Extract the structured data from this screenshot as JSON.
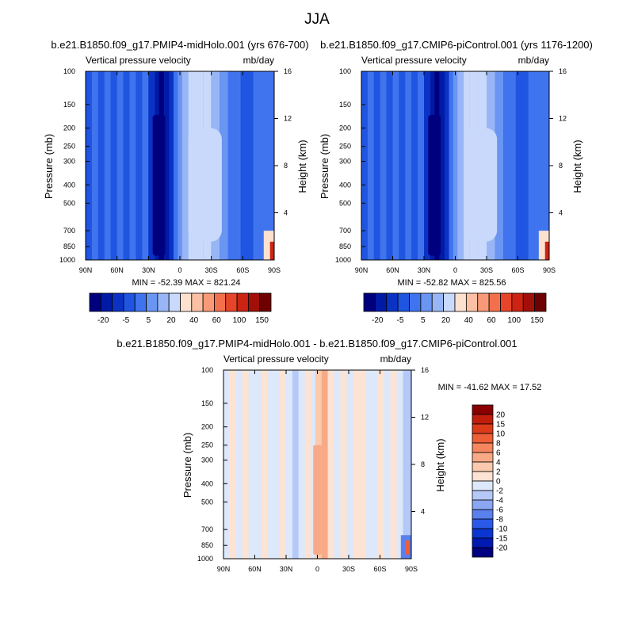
{
  "figure": {
    "title": "JJA"
  },
  "colors": {
    "levels": [
      "#00007f",
      "#001aa6",
      "#0a33c6",
      "#1f55e0",
      "#3f74ee",
      "#6a95f2",
      "#98b6f5",
      "#c9d9fb",
      "#fde1cf",
      "#fbc0a4",
      "#f89a78",
      "#f2704c",
      "#e6452a",
      "#cc2312",
      "#a20e08",
      "#6e0000"
    ],
    "diff_levels": [
      "#000080",
      "#0019b0",
      "#0a35d0",
      "#2a58e8",
      "#5a80ee",
      "#8ba6f3",
      "#b5c9f8",
      "#dde8fb",
      "#fde3d3",
      "#fbc9ae",
      "#f8a986",
      "#f5865e",
      "#ee5e37",
      "#dd3a1a",
      "#c01d0b",
      "#8a0000"
    ]
  },
  "chart_data": [
    {
      "type": "heatmap",
      "title": "b.e21.B1850.f09_g17.PMIP4-midHolo.001 (yrs 676-700)",
      "left_label": "Vertical pressure velocity",
      "right_label": "mb/day",
      "xlabel": "",
      "ylabel": "Pressure (mb)",
      "ylabel_right": "Height (km)",
      "x_ticks": [
        "90N",
        "60N",
        "30N",
        "0",
        "30S",
        "60S",
        "90S"
      ],
      "x_values": [
        90,
        60,
        30,
        0,
        -30,
        -60,
        -90
      ],
      "y_ticks": [
        "100",
        "150",
        "200",
        "250",
        "300",
        "400",
        "500",
        "700",
        "850",
        "1000"
      ],
      "y_values": [
        100,
        150,
        200,
        250,
        300,
        400,
        500,
        700,
        850,
        1000
      ],
      "height_ticks": [
        "16",
        "12",
        "8",
        "4"
      ],
      "height_values": [
        16,
        12,
        8,
        4
      ],
      "stats": "MIN = -52.39  MAX = 821.24",
      "colorbar_labels": [
        "-20",
        "-5",
        "5",
        "20",
        "40",
        "60",
        "100",
        "150"
      ],
      "xlim": [
        90,
        -90
      ],
      "ylim": [
        100,
        1000
      ]
    },
    {
      "type": "heatmap",
      "title": "b.e21.B1850.f09_g17.CMIP6-piControl.001 (yrs 1176-1200)",
      "left_label": "Vertical pressure velocity",
      "right_label": "mb/day",
      "xlabel": "",
      "ylabel": "Pressure (mb)",
      "ylabel_right": "Height (km)",
      "x_ticks": [
        "90N",
        "60N",
        "30N",
        "0",
        "30S",
        "60S",
        "90S"
      ],
      "x_values": [
        90,
        60,
        30,
        0,
        -30,
        -60,
        -90
      ],
      "y_ticks": [
        "100",
        "150",
        "200",
        "250",
        "300",
        "400",
        "500",
        "700",
        "850",
        "1000"
      ],
      "y_values": [
        100,
        150,
        200,
        250,
        300,
        400,
        500,
        700,
        850,
        1000
      ],
      "height_ticks": [
        "16",
        "12",
        "8",
        "4"
      ],
      "height_values": [
        16,
        12,
        8,
        4
      ],
      "stats": "MIN = -52.82  MAX = 825.56",
      "colorbar_labels": [
        "-20",
        "-5",
        "5",
        "20",
        "40",
        "60",
        "100",
        "150"
      ],
      "xlim": [
        90,
        -90
      ],
      "ylim": [
        100,
        1000
      ]
    },
    {
      "type": "heatmap",
      "title": "b.e21.B1850.f09_g17.PMIP4-midHolo.001 - b.e21.B1850.f09_g17.CMIP6-piControl.001",
      "left_label": "Vertical pressure velocity",
      "right_label": "mb/day",
      "xlabel": "",
      "ylabel": "Pressure (mb)",
      "ylabel_right": "Height (km)",
      "x_ticks": [
        "90N",
        "60N",
        "30N",
        "0",
        "30S",
        "60S",
        "90S"
      ],
      "x_values": [
        90,
        60,
        30,
        0,
        -30,
        -60,
        -90
      ],
      "y_ticks": [
        "100",
        "150",
        "200",
        "250",
        "300",
        "400",
        "500",
        "700",
        "850",
        "1000"
      ],
      "y_values": [
        100,
        150,
        200,
        250,
        300,
        400,
        500,
        700,
        850,
        1000
      ],
      "height_ticks": [
        "16",
        "12",
        "8",
        "4"
      ],
      "height_values": [
        16,
        12,
        8,
        4
      ],
      "stats": "MIN = -41.62  MAX =  17.52",
      "colorbar_labels": [
        "20",
        "15",
        "10",
        "8",
        "6",
        "4",
        "2",
        "0",
        "-2",
        "-4",
        "-6",
        "-8",
        "-10",
        "-15",
        "-20"
      ],
      "xlim": [
        90,
        -90
      ],
      "ylim": [
        100,
        1000
      ]
    }
  ]
}
